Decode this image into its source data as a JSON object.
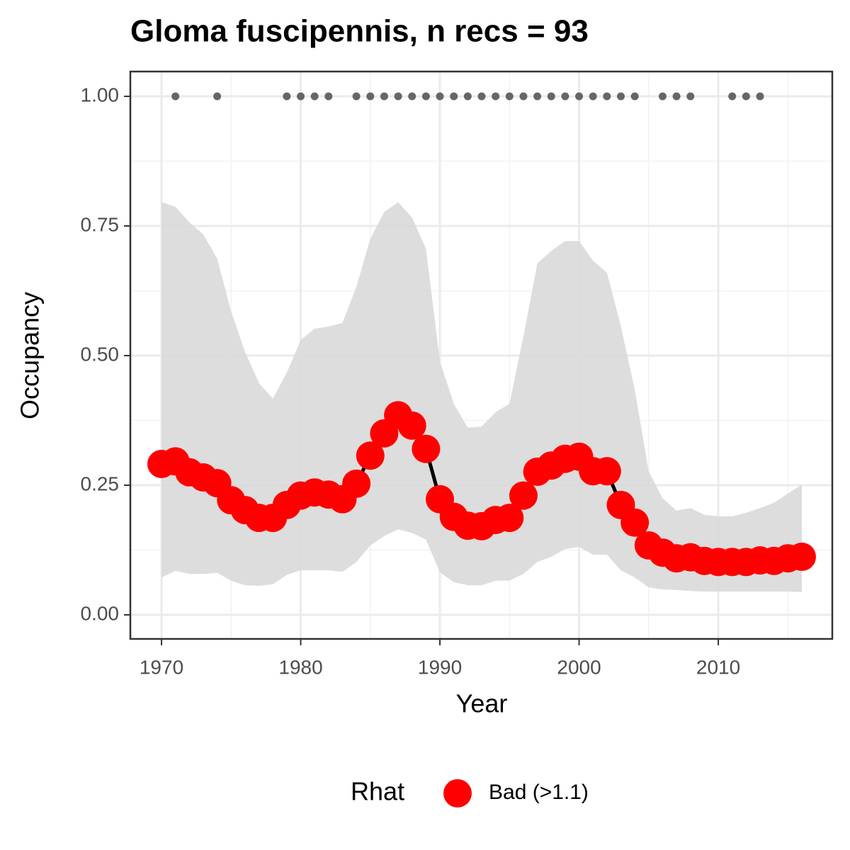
{
  "chart_data": {
    "type": "line",
    "title": "Gloma fuscipennis, n recs = 93",
    "x_label": "Year",
    "y_label": "Occupancy",
    "x": [
      1970,
      1971,
      1972,
      1973,
      1974,
      1975,
      1976,
      1977,
      1978,
      1979,
      1980,
      1981,
      1982,
      1983,
      1984,
      1985,
      1986,
      1987,
      1988,
      1989,
      1990,
      1991,
      1992,
      1993,
      1994,
      1995,
      1996,
      1997,
      1998,
      1999,
      2000,
      2001,
      2002,
      2003,
      2004,
      2005,
      2006,
      2007,
      2008,
      2009,
      2010,
      2011,
      2012,
      2013,
      2014,
      2015,
      2016
    ],
    "series": [
      {
        "name": "Bad (>1.1)",
        "color": "#ff0000",
        "values": [
          0.291,
          0.296,
          0.275,
          0.265,
          0.254,
          0.221,
          0.202,
          0.187,
          0.187,
          0.212,
          0.23,
          0.236,
          0.232,
          0.223,
          0.253,
          0.307,
          0.35,
          0.385,
          0.365,
          0.32,
          0.223,
          0.189,
          0.172,
          0.171,
          0.183,
          0.187,
          0.23,
          0.276,
          0.288,
          0.301,
          0.305,
          0.277,
          0.277,
          0.212,
          0.178,
          0.134,
          0.12,
          0.109,
          0.111,
          0.104,
          0.102,
          0.102,
          0.102,
          0.105,
          0.104,
          0.109,
          0.112
        ]
      }
    ],
    "band": {
      "color": "#d9d9d9",
      "upper": [
        0.796,
        0.787,
        0.757,
        0.734,
        0.687,
        0.585,
        0.507,
        0.447,
        0.417,
        0.467,
        0.53,
        0.552,
        0.556,
        0.563,
        0.633,
        0.725,
        0.777,
        0.796,
        0.766,
        0.706,
        0.489,
        0.407,
        0.361,
        0.363,
        0.391,
        0.407,
        0.537,
        0.678,
        0.702,
        0.721,
        0.721,
        0.683,
        0.66,
        0.557,
        0.434,
        0.277,
        0.225,
        0.201,
        0.206,
        0.193,
        0.19,
        0.19,
        0.197,
        0.206,
        0.216,
        0.234,
        0.251
      ],
      "lower": [
        0.072,
        0.085,
        0.079,
        0.079,
        0.081,
        0.066,
        0.057,
        0.056,
        0.059,
        0.077,
        0.086,
        0.086,
        0.086,
        0.083,
        0.102,
        0.134,
        0.152,
        0.165,
        0.158,
        0.145,
        0.082,
        0.063,
        0.057,
        0.057,
        0.066,
        0.066,
        0.079,
        0.102,
        0.112,
        0.127,
        0.131,
        0.116,
        0.116,
        0.086,
        0.072,
        0.053,
        0.049,
        0.048,
        0.046,
        0.045,
        0.045,
        0.045,
        0.045,
        0.045,
        0.045,
        0.045,
        0.044
      ]
    },
    "records": {
      "color": "#666666",
      "x": [
        1971,
        1974,
        1979,
        1980,
        1981,
        1982,
        1984,
        1985,
        1986,
        1987,
        1988,
        1989,
        1990,
        1991,
        1992,
        1993,
        1994,
        1995,
        1996,
        1997,
        1998,
        1999,
        2000,
        2001,
        2002,
        2003,
        2004,
        2006,
        2007,
        2008,
        2011,
        2012,
        2013
      ],
      "values": [
        1,
        1,
        1,
        1,
        1,
        1,
        1,
        1,
        1,
        1,
        1,
        1,
        1,
        1,
        1,
        1,
        1,
        1,
        1,
        1,
        1,
        1,
        1,
        1,
        1,
        1,
        1,
        1,
        1,
        1,
        1,
        1,
        1
      ]
    },
    "line_color": "#000000",
    "xlim": [
      1967.76,
      2018.19
    ],
    "ylim": [
      -0.0464,
      1.0478
    ],
    "xticks": [
      1970,
      1980,
      1990,
      2000,
      2010
    ],
    "yticks": [
      {
        "value": 0,
        "label": "0.00"
      },
      {
        "value": 0.25,
        "label": "0.25"
      },
      {
        "value": 0.5,
        "label": "0.50"
      },
      {
        "value": 0.75,
        "label": "0.75"
      },
      {
        "value": 1,
        "label": "1.00"
      }
    ],
    "grid": true,
    "legend_title": "Rhat",
    "legend_position": "bottom"
  }
}
